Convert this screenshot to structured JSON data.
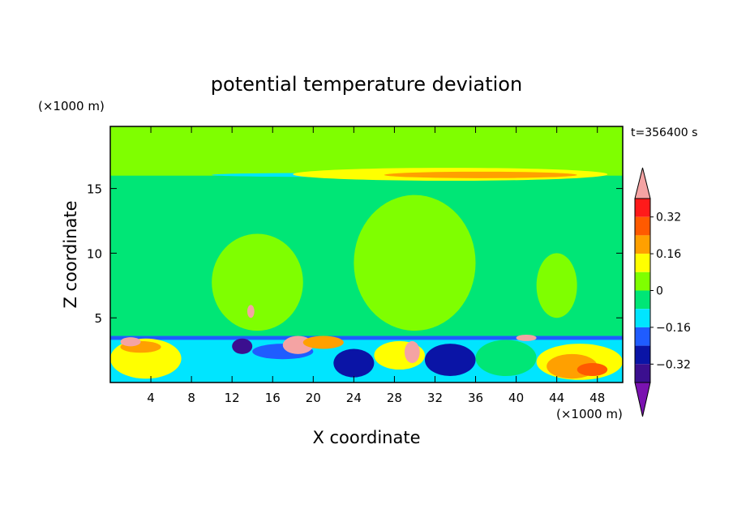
{
  "chart_data": {
    "type": "heatmap",
    "title": "potential temperature deviation",
    "xlabel": "X coordinate",
    "ylabel": "Z coordinate",
    "x_unit": "(×1000 m)",
    "y_unit": "(×1000 m)",
    "time_label": "t=356400 s",
    "xlim": [
      0,
      50.5
    ],
    "ylim": [
      0,
      19.8
    ],
    "x_ticks": [
      4,
      8,
      12,
      16,
      20,
      24,
      28,
      32,
      36,
      40,
      44,
      48
    ],
    "y_ticks": [
      5,
      10,
      15
    ],
    "colorbar": {
      "labels": [
        "0.32",
        "0.16",
        "0",
        "-0.16",
        "-0.32"
      ],
      "label_values": [
        0.32,
        0.16,
        0,
        -0.16,
        -0.32
      ],
      "levels": [
        -0.4,
        -0.32,
        -0.24,
        -0.16,
        -0.08,
        0,
        0.08,
        0.16,
        0.24,
        0.32,
        0.4
      ],
      "colors": [
        "#7a12b0",
        "#3b0f8f",
        "#0a14a6",
        "#1f5cff",
        "#00e5ff",
        "#00e676",
        "#7fff00",
        "#ffff00",
        "#ffa000",
        "#ff5a00",
        "#ff1a1a",
        "#f4a3a3"
      ]
    },
    "field": {
      "background": "#7fff00",
      "regions": [
        {
          "label": "upper-band",
          "color": "#00e676",
          "x": [
            0,
            50.5
          ],
          "z": [
            3.6,
            16.0
          ]
        },
        {
          "label": "upper-bulge-left",
          "color": "#7fff00",
          "x": [
            10,
            19
          ],
          "z": [
            4.0,
            11.5
          ]
        },
        {
          "label": "upper-bulge-mid",
          "color": "#7fff00",
          "x": [
            24,
            36
          ],
          "z": [
            4.0,
            14.5
          ]
        },
        {
          "label": "upper-bulge-right",
          "color": "#7fff00",
          "x": [
            42,
            46
          ],
          "z": [
            5.0,
            10.0
          ]
        },
        {
          "label": "top-layer",
          "color": "#7fff00",
          "x": [
            0,
            50.5
          ],
          "z": [
            16.0,
            19.8
          ]
        },
        {
          "label": "tropopause-line-cyan",
          "color": "#00e5ff",
          "x": [
            10,
            30
          ],
          "z": [
            15.9,
            16.2
          ]
        },
        {
          "label": "tropopause-line-yellow",
          "color": "#ffff00",
          "x": [
            18,
            49
          ],
          "z": [
            15.6,
            16.6
          ]
        },
        {
          "label": "tropopause-line-orange",
          "color": "#ffa000",
          "x": [
            27,
            46
          ],
          "z": [
            15.8,
            16.3
          ]
        },
        {
          "label": "boundary-cyan",
          "color": "#00e5ff",
          "x": [
            0,
            50.5
          ],
          "z": [
            0.0,
            3.6
          ]
        },
        {
          "label": "boundary-blue",
          "color": "#1f5cff",
          "x": [
            0,
            50.5
          ],
          "z": [
            3.3,
            3.6
          ]
        },
        {
          "label": "bl-yellow-1",
          "color": "#ffff00",
          "x": [
            0,
            7
          ],
          "z": [
            0.3,
            3.4
          ]
        },
        {
          "label": "bl-orange-1",
          "color": "#ffa000",
          "x": [
            1,
            5
          ],
          "z": [
            2.3,
            3.2
          ]
        },
        {
          "label": "bl-pink-1",
          "color": "#f4a3a3",
          "x": [
            1,
            3
          ],
          "z": [
            2.8,
            3.5
          ]
        },
        {
          "label": "bl-navy-1",
          "color": "#3b0f8f",
          "x": [
            12,
            14
          ],
          "z": [
            2.2,
            3.4
          ]
        },
        {
          "label": "bl-blue-1",
          "color": "#1f5cff",
          "x": [
            14,
            20
          ],
          "z": [
            1.8,
            3.0
          ]
        },
        {
          "label": "bl-pink-2",
          "color": "#f4a3a3",
          "x": [
            17,
            20
          ],
          "z": [
            2.2,
            3.6
          ]
        },
        {
          "label": "bl-orange-2",
          "color": "#ffa000",
          "x": [
            19,
            23
          ],
          "z": [
            2.6,
            3.6
          ]
        },
        {
          "label": "bl-navy-2",
          "color": "#0a14a6",
          "x": [
            22,
            26
          ],
          "z": [
            0.4,
            2.6
          ]
        },
        {
          "label": "bl-yellow-2",
          "color": "#ffff00",
          "x": [
            26,
            31
          ],
          "z": [
            1.0,
            3.2
          ]
        },
        {
          "label": "bl-pink-3",
          "color": "#f4a3a3",
          "x": [
            29,
            30.5
          ],
          "z": [
            1.5,
            3.2
          ]
        },
        {
          "label": "bl-navy-3",
          "color": "#0a14a6",
          "x": [
            31,
            36
          ],
          "z": [
            0.5,
            3.0
          ]
        },
        {
          "label": "bl-green-3",
          "color": "#00e676",
          "x": [
            36,
            42
          ],
          "z": [
            0.5,
            3.3
          ]
        },
        {
          "label": "bl-yellow-3",
          "color": "#ffff00",
          "x": [
            42,
            50.5
          ],
          "z": [
            0.2,
            3.0
          ]
        },
        {
          "label": "bl-orange-3",
          "color": "#ffa000",
          "x": [
            43,
            48
          ],
          "z": [
            0.3,
            2.2
          ]
        },
        {
          "label": "bl-red-3",
          "color": "#ff5a00",
          "x": [
            46,
            49
          ],
          "z": [
            0.5,
            1.5
          ]
        },
        {
          "label": "bl-pink-4",
          "color": "#f4a3a3",
          "x": [
            40,
            42
          ],
          "z": [
            3.2,
            3.7
          ]
        },
        {
          "label": "upper-pink-blob",
          "color": "#f4a3a3",
          "x": [
            13.5,
            14.2
          ],
          "z": [
            5.0,
            6.0
          ]
        }
      ]
    }
  }
}
